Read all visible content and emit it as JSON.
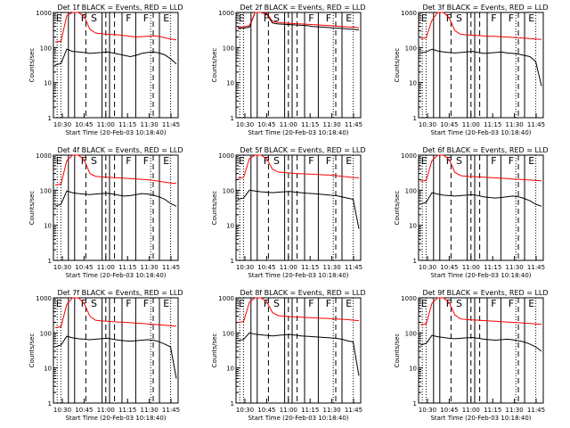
{
  "page": {
    "background": "#ffffff",
    "foreground": "#000000",
    "events_color": "#000000",
    "lld_color": "#ff0000"
  },
  "chart_data": [
    {
      "type": "line",
      "title": "Det 1f BLACK = Events, RED = LLD",
      "xlabel": "Start Time (20-Feb-03 10:18:40)",
      "ylabel": "Counts/sec",
      "x_tick_labels": [
        "10:30",
        "10:45",
        "11:00",
        "11:15",
        "11:30",
        "11:45"
      ],
      "y_tick_labels": [
        "1",
        "10",
        "100",
        "1000"
      ],
      "y_scale": "log",
      "ylim": [
        1,
        1000
      ],
      "region_markers": [
        "E",
        "F",
        "S",
        "F",
        "F",
        "E"
      ],
      "series": [
        {
          "name": "Events",
          "color": "#000000",
          "values": [
            32,
            35,
            90,
            78,
            75,
            72,
            68,
            70,
            72,
            75,
            70,
            65,
            60,
            55,
            60,
            68,
            72,
            75,
            70,
            62,
            48,
            34
          ]
        },
        {
          "name": "LLD",
          "color": "#ff0000",
          "values": [
            145,
            150,
            820,
            1000,
            1000,
            800,
            330,
            260,
            250,
            240,
            235,
            230,
            220,
            210,
            200,
            205,
            210,
            215,
            210,
            190,
            175,
            165
          ]
        }
      ]
    },
    {
      "type": "line",
      "title": "Det 2f BLACK = Events, RED = LLD",
      "xlabel": "Start Time (20-Feb-03 10:18:40)",
      "ylabel": "Counts/sec",
      "x_tick_labels": [
        "10:30",
        "10:45",
        "11:00",
        "11:15",
        "11:30",
        "11:45"
      ],
      "y_tick_labels": [
        "1",
        "10",
        "100",
        "1000"
      ],
      "y_scale": "log",
      "ylim": [
        1,
        1000
      ],
      "region_markers": [
        "E",
        "F",
        "S",
        "F",
        "F",
        "E"
      ],
      "series": [
        {
          "name": "Events",
          "color": "#000000",
          "values": [
            350,
            360,
            380,
            1000,
            1000,
            900,
            500,
            470,
            460,
            450,
            440,
            430,
            420,
            400,
            390,
            380,
            370,
            360,
            350,
            340,
            330,
            320
          ]
        },
        {
          "name": "LLD",
          "color": "#ff0000",
          "values": [
            380,
            390,
            420,
            1000,
            1000,
            950,
            560,
            520,
            500,
            490,
            480,
            470,
            460,
            450,
            440,
            430,
            420,
            410,
            400,
            390,
            380,
            370
          ]
        }
      ]
    },
    {
      "type": "line",
      "title": "Det 3f BLACK = Events, RED = LLD",
      "xlabel": "Start Time (20-Feb-03 10:18:40)",
      "ylabel": "Counts/sec",
      "x_tick_labels": [
        "10:30",
        "10:45",
        "11:00",
        "11:15",
        "11:30",
        "11:45"
      ],
      "y_tick_labels": [
        "1",
        "10",
        "100",
        "1000"
      ],
      "y_scale": "log",
      "ylim": [
        1,
        1000
      ],
      "region_markers": [
        "E",
        "F",
        "S",
        "F",
        "F",
        "E"
      ],
      "series": [
        {
          "name": "Events",
          "color": "#000000",
          "values": [
            70,
            75,
            90,
            80,
            75,
            72,
            70,
            72,
            75,
            78,
            72,
            68,
            70,
            72,
            75,
            70,
            68,
            65,
            60,
            55,
            40,
            8
          ]
        },
        {
          "name": "LLD",
          "color": "#ff0000",
          "values": [
            180,
            190,
            600,
            1000,
            1000,
            700,
            300,
            240,
            230,
            225,
            220,
            215,
            210,
            210,
            205,
            200,
            195,
            190,
            185,
            180,
            175,
            170
          ]
        }
      ]
    },
    {
      "type": "line",
      "title": "Det 4f BLACK = Events, RED = LLD",
      "xlabel": "Start Time (20-Feb-03 10:18:40)",
      "ylabel": "Counts/sec",
      "x_tick_labels": [
        "10:30",
        "10:45",
        "11:00",
        "11:15",
        "11:30",
        "11:45"
      ],
      "y_tick_labels": [
        "1",
        "10",
        "100",
        "1000"
      ],
      "y_scale": "log",
      "ylim": [
        1,
        1000
      ],
      "region_markers": [
        "E",
        "F",
        "S",
        "F",
        "F",
        "E"
      ],
      "series": [
        {
          "name": "Events",
          "color": "#000000",
          "values": [
            35,
            40,
            95,
            85,
            80,
            78,
            75,
            78,
            80,
            82,
            78,
            72,
            68,
            70,
            75,
            80,
            78,
            72,
            65,
            55,
            42,
            35
          ]
        },
        {
          "name": "LLD",
          "color": "#ff0000",
          "values": [
            140,
            150,
            700,
            1000,
            1000,
            750,
            300,
            250,
            240,
            235,
            230,
            225,
            220,
            215,
            210,
            205,
            200,
            190,
            180,
            170,
            160,
            155
          ]
        }
      ]
    },
    {
      "type": "line",
      "title": "Det 5f BLACK = Events, RED = LLD",
      "xlabel": "Start Time (20-Feb-03 10:18:40)",
      "ylabel": "Counts/sec",
      "x_tick_labels": [
        "10:30",
        "10:45",
        "11:00",
        "11:15",
        "11:30",
        "11:45"
      ],
      "y_tick_labels": [
        "1",
        "10",
        "100",
        "1000"
      ],
      "y_scale": "log",
      "ylim": [
        1,
        1000
      ],
      "region_markers": [
        "E",
        "F",
        "S",
        "F",
        "F",
        "E"
      ],
      "series": [
        {
          "name": "Events",
          "color": "#000000",
          "values": [
            55,
            60,
            100,
            95,
            90,
            88,
            85,
            88,
            90,
            92,
            88,
            85,
            82,
            80,
            78,
            75,
            72,
            70,
            65,
            60,
            55,
            8
          ]
        },
        {
          "name": "LLD",
          "color": "#ff0000",
          "values": [
            220,
            230,
            800,
            1000,
            1000,
            800,
            400,
            330,
            320,
            310,
            300,
            295,
            290,
            285,
            280,
            275,
            270,
            260,
            250,
            240,
            230,
            225
          ]
        }
      ]
    },
    {
      "type": "line",
      "title": "Det 6f BLACK = Events, RED = LLD",
      "xlabel": "Start Time (20-Feb-03 10:18:40)",
      "ylabel": "Counts/sec",
      "x_tick_labels": [
        "10:30",
        "10:45",
        "11:00",
        "11:15",
        "11:30",
        "11:45"
      ],
      "y_tick_labels": [
        "1",
        "10",
        "100",
        "1000"
      ],
      "y_scale": "log",
      "ylim": [
        1,
        1000
      ],
      "region_markers": [
        "E",
        "F",
        "S",
        "F",
        "F",
        "E"
      ],
      "series": [
        {
          "name": "Events",
          "color": "#000000",
          "values": [
            40,
            45,
            85,
            78,
            72,
            70,
            68,
            70,
            72,
            75,
            70,
            65,
            62,
            60,
            62,
            65,
            68,
            65,
            58,
            50,
            40,
            35
          ]
        },
        {
          "name": "LLD",
          "color": "#ff0000",
          "values": [
            180,
            190,
            700,
            1000,
            1000,
            750,
            320,
            260,
            250,
            245,
            240,
            235,
            230,
            225,
            220,
            215,
            210,
            205,
            200,
            195,
            190,
            185
          ]
        }
      ]
    },
    {
      "type": "line",
      "title": "Det 7f BLACK = Events, RED = LLD",
      "xlabel": "Start Time (20-Feb-03 10:18:40)",
      "ylabel": "Counts/sec",
      "x_tick_labels": [
        "10:30",
        "10:45",
        "11:00",
        "11:15",
        "11:30",
        "11:45"
      ],
      "y_tick_labels": [
        "1",
        "10",
        "100",
        "1000"
      ],
      "y_scale": "log",
      "ylim": [
        1,
        1000
      ],
      "region_markers": [
        "E",
        "F",
        "S",
        "F",
        "F",
        "E"
      ],
      "series": [
        {
          "name": "Events",
          "color": "#000000",
          "values": [
            40,
            45,
            80,
            72,
            68,
            66,
            64,
            66,
            68,
            70,
            66,
            62,
            60,
            58,
            60,
            62,
            64,
            62,
            56,
            48,
            40,
            5
          ]
        },
        {
          "name": "LLD",
          "color": "#ff0000",
          "values": [
            140,
            150,
            650,
            1000,
            1000,
            700,
            300,
            230,
            220,
            215,
            210,
            205,
            200,
            195,
            190,
            185,
            180,
            175,
            170,
            165,
            160,
            155
          ]
        }
      ]
    },
    {
      "type": "line",
      "title": "Det 8f BLACK = Events, RED = LLD",
      "xlabel": "Start Time (20-Feb-03 10:18:40)",
      "ylabel": "Counts/sec",
      "x_tick_labels": [
        "10:30",
        "10:45",
        "11:00",
        "11:15",
        "11:30",
        "11:45"
      ],
      "y_tick_labels": [
        "1",
        "10",
        "100",
        "1000"
      ],
      "y_scale": "log",
      "ylim": [
        1,
        1000
      ],
      "region_markers": [
        "E",
        "F",
        "S",
        "F",
        "F",
        "E"
      ],
      "series": [
        {
          "name": "Events",
          "color": "#000000",
          "values": [
            60,
            65,
            100,
            92,
            88,
            85,
            82,
            85,
            88,
            90,
            86,
            82,
            80,
            78,
            76,
            74,
            72,
            70,
            66,
            60,
            55,
            6
          ]
        },
        {
          "name": "LLD",
          "color": "#ff0000",
          "values": [
            200,
            210,
            750,
            1000,
            1000,
            780,
            380,
            310,
            300,
            290,
            285,
            280,
            275,
            270,
            265,
            260,
            255,
            250,
            245,
            240,
            230,
            225
          ]
        }
      ]
    },
    {
      "type": "line",
      "title": "Det 9f BLACK = Events, RED = LLD",
      "xlabel": "Start Time (20-Feb-03 10:18:40)",
      "ylabel": "Counts/sec",
      "x_tick_labels": [
        "10:30",
        "10:45",
        "11:00",
        "11:15",
        "11:30",
        "11:45"
      ],
      "y_tick_labels": [
        "1",
        "10",
        "100",
        "1000"
      ],
      "y_scale": "log",
      "ylim": [
        1,
        1000
      ],
      "region_markers": [
        "E",
        "F",
        "S",
        "F",
        "F",
        "E"
      ],
      "series": [
        {
          "name": "Events",
          "color": "#000000",
          "values": [
            45,
            50,
            85,
            78,
            74,
            70,
            68,
            70,
            72,
            74,
            70,
            66,
            64,
            62,
            64,
            66,
            64,
            60,
            55,
            48,
            40,
            30
          ]
        },
        {
          "name": "LLD",
          "color": "#ff0000",
          "values": [
            170,
            180,
            700,
            1000,
            1000,
            720,
            320,
            250,
            240,
            235,
            230,
            225,
            220,
            215,
            210,
            205,
            200,
            195,
            190,
            185,
            180,
            175
          ]
        }
      ]
    }
  ]
}
